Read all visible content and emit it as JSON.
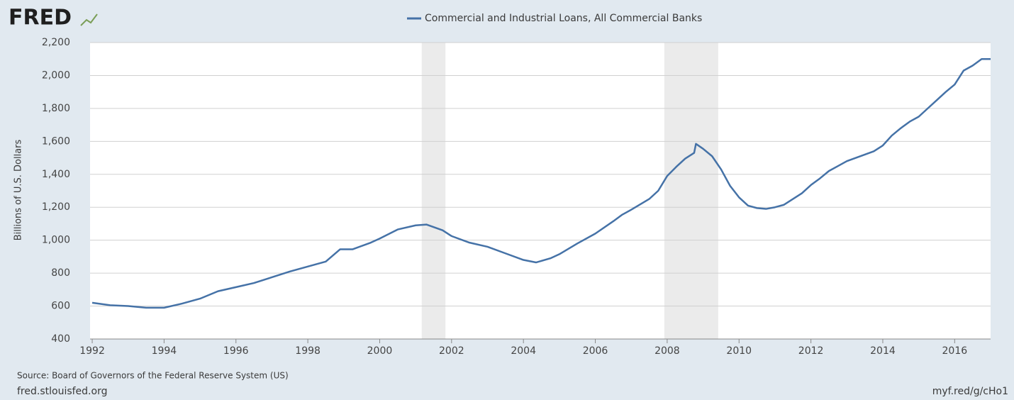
{
  "logo": "FRED",
  "chart_data": {
    "type": "line",
    "y_label": "Billions of U.S. Dollars",
    "source": "Source: Board of Governors of the Federal Reserve System (US)",
    "footer_left": "fred.stlouisfed.org",
    "footer_right": "myf.red/g/cHo1",
    "x": [
      1992.0,
      1992.5,
      1993.0,
      1993.5,
      1994.0,
      1994.5,
      1995.0,
      1995.5,
      1996.0,
      1996.5,
      1997.0,
      1997.5,
      1998.0,
      1998.5,
      1998.9,
      1999.25,
      1999.75,
      2000.0,
      2000.5,
      2001.0,
      2001.3,
      2001.75,
      2002.0,
      2002.5,
      2003.0,
      2003.5,
      2004.0,
      2004.35,
      2004.75,
      2005.0,
      2005.5,
      2006.0,
      2006.5,
      2006.75,
      2007.0,
      2007.5,
      2007.75,
      2008.0,
      2008.25,
      2008.5,
      2008.75,
      2008.8,
      2009.0,
      2009.25,
      2009.5,
      2009.75,
      2010.0,
      2010.25,
      2010.5,
      2010.75,
      2011.0,
      2011.25,
      2011.5,
      2011.75,
      2012.0,
      2012.25,
      2012.5,
      2012.75,
      2013.0,
      2013.25,
      2013.5,
      2013.75,
      2014.0,
      2014.25,
      2014.5,
      2014.75,
      2015.0,
      2015.25,
      2015.5,
      2015.75,
      2016.0,
      2016.25,
      2016.5,
      2016.75,
      2017.0
    ],
    "series": [
      {
        "name": "Commercial and Industrial Loans, All Commercial Banks",
        "color": "#4572a7",
        "values": [
          620,
          605,
          600,
          590,
          590,
          615,
          645,
          690,
          715,
          740,
          775,
          810,
          840,
          870,
          945,
          945,
          985,
          1010,
          1065,
          1090,
          1095,
          1060,
          1025,
          985,
          960,
          920,
          880,
          865,
          890,
          915,
          980,
          1040,
          1115,
          1155,
          1185,
          1250,
          1300,
          1390,
          1445,
          1495,
          1530,
          1585,
          1555,
          1510,
          1430,
          1330,
          1260,
          1210,
          1195,
          1190,
          1200,
          1215,
          1250,
          1285,
          1335,
          1375,
          1420,
          1450,
          1480,
          1500,
          1520,
          1540,
          1575,
          1635,
          1680,
          1720,
          1750,
          1800,
          1850,
          1900,
          1945,
          2030,
          2060,
          2100,
          2100
        ]
      }
    ],
    "recessions": [
      [
        2001.17,
        2001.83
      ],
      [
        2007.92,
        2009.42
      ]
    ],
    "recession_color": "#ebebeb",
    "xlim": [
      1991.94,
      2017.0
    ],
    "xticks": [
      1992,
      1994,
      1996,
      1998,
      2000,
      2002,
      2004,
      2006,
      2008,
      2010,
      2012,
      2014,
      2016
    ],
    "ylim": [
      400,
      2200
    ],
    "yticks": [
      400,
      600,
      800,
      {
        "value": 1000,
        "label": "1,000"
      },
      {
        "value": 1200,
        "label": "1,200"
      },
      {
        "value": 1400,
        "label": "1,400"
      },
      {
        "value": 1600,
        "label": "1,600"
      },
      {
        "value": 1800,
        "label": "1,800"
      },
      {
        "value": 2000,
        "label": "2,000"
      },
      {
        "value": 2200,
        "label": "2,200"
      }
    ],
    "grid": true
  }
}
